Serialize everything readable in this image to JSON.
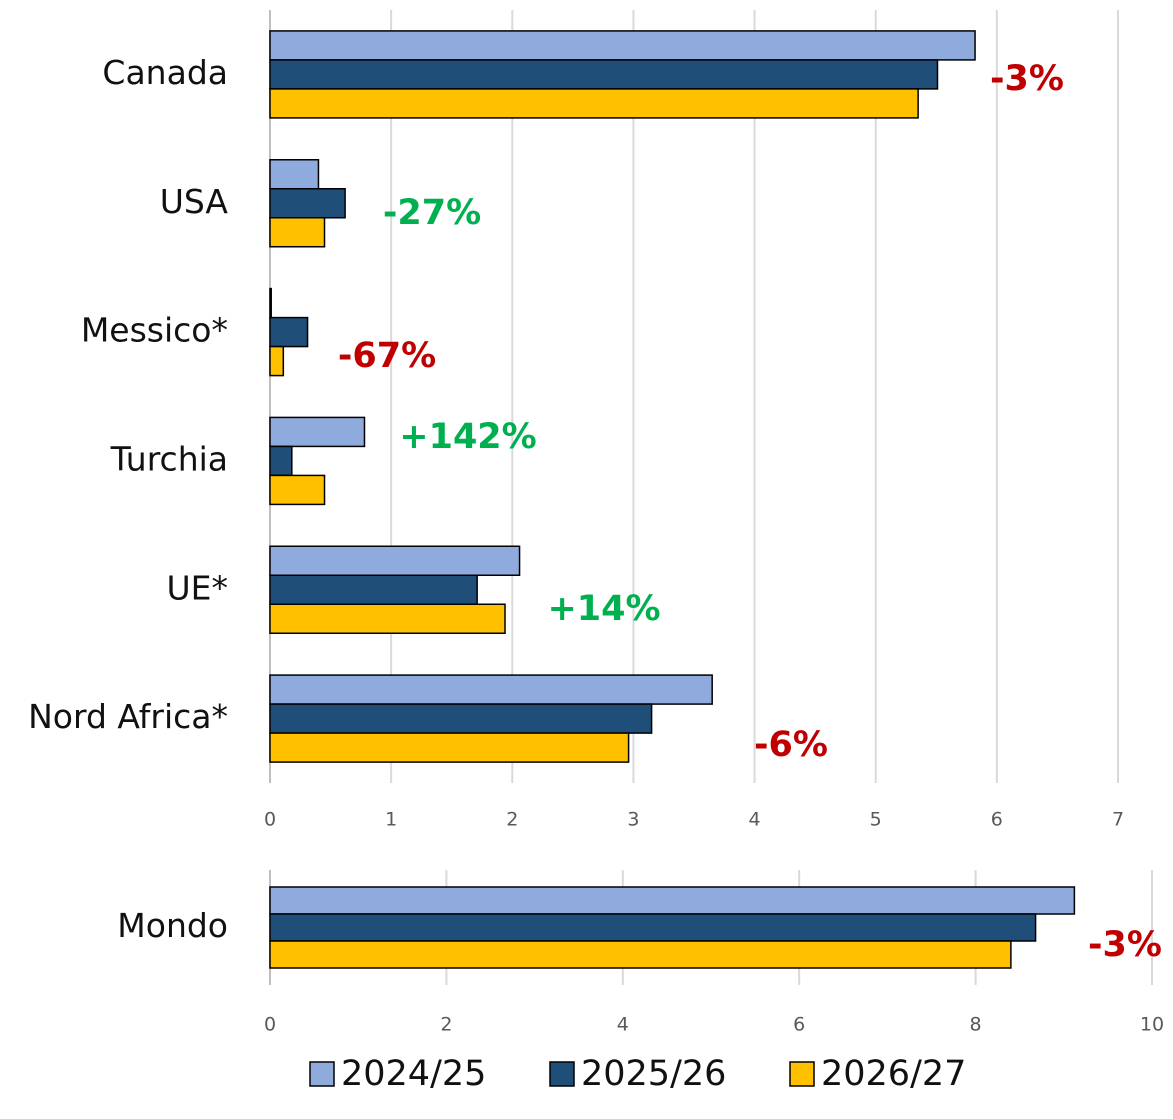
{
  "chart_data": [
    {
      "type": "barh",
      "categories": [
        "Canada",
        "USA",
        "Messico*",
        "Turchia",
        "UE*",
        "Nord Africa*"
      ],
      "series": [
        {
          "name": "2024/25",
          "color": "#8faadc",
          "values": [
            5.82,
            0.4,
            0.01,
            0.78,
            2.06,
            3.65
          ]
        },
        {
          "name": "2025/26",
          "color": "#1f4e79",
          "values": [
            5.51,
            0.62,
            0.31,
            0.18,
            1.71,
            3.15
          ]
        },
        {
          "name": "2026/27",
          "color": "#ffc000",
          "values": [
            5.35,
            0.45,
            0.11,
            0.45,
            1.94,
            2.96
          ]
        }
      ],
      "annotations": [
        {
          "text": "-3%",
          "color": "#c00000"
        },
        {
          "text": "-27%",
          "color": "#00b050"
        },
        {
          "text": "-67%",
          "color": "#c00000"
        },
        {
          "text": "+142%",
          "color": "#00b050"
        },
        {
          "text": "+14%",
          "color": "#00b050"
        },
        {
          "text": "-6%",
          "color": "#c00000"
        }
      ],
      "xlim": [
        0,
        7
      ],
      "xticks": [
        0,
        1,
        2,
        3,
        4,
        5,
        6,
        7
      ],
      "grid": true
    },
    {
      "type": "barh",
      "categories": [
        "Mondo"
      ],
      "series": [
        {
          "color": "#8faadc",
          "values": [
            9.12
          ]
        },
        {
          "color": "#1f4e79",
          "values": [
            8.68
          ]
        },
        {
          "color": "#ffc000",
          "values": [
            8.4
          ]
        }
      ],
      "annotations": [
        {
          "text": "-3%",
          "color": "#c00000"
        }
      ],
      "xlim": [
        0,
        10
      ],
      "xticks": [
        0,
        2,
        4,
        6,
        8,
        10
      ],
      "grid": true
    }
  ]
}
